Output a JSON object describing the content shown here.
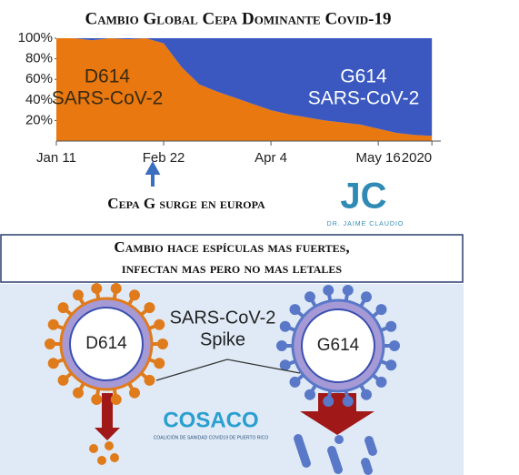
{
  "chart_data": {
    "type": "stacked-area",
    "title": "Cambio Global Cepa Dominante Covid-19",
    "categories": [
      "Jan 11",
      null,
      null,
      null,
      null,
      null,
      "Feb 22",
      null,
      null,
      null,
      null,
      null,
      "Apr 4",
      null,
      null,
      null,
      null,
      null,
      "May 16",
      null,
      null,
      "2020"
    ],
    "series": [
      {
        "color": "#e8780f",
        "values": [
          100,
          100,
          98,
          100,
          99,
          100,
          95,
          72,
          55,
          48,
          42,
          36,
          30,
          26,
          23,
          20,
          18,
          16,
          12,
          8,
          6,
          5
        ]
      },
      {
        "color": "#3a58c0",
        "values": [
          0,
          0,
          2,
          0,
          1,
          0,
          5,
          28,
          45,
          52,
          58,
          64,
          70,
          74,
          77,
          80,
          82,
          84,
          88,
          92,
          94,
          95
        ]
      }
    ],
    "ylim": [
      0,
      100
    ],
    "yticks": [
      {
        "value": 20,
        "label": "20%"
      },
      {
        "value": 40,
        "label": "40%"
      },
      {
        "value": 60,
        "label": "60%"
      },
      {
        "value": 80,
        "label": "80%"
      },
      {
        "value": 100,
        "label": "100%"
      }
    ],
    "annotations": [
      [
        "D614",
        "SARS-CoV-2"
      ],
      [
        "G614",
        "SARS-CoV-2"
      ]
    ],
    "arrow_note": "Cepa G surge en europa",
    "logo_initials": "JC",
    "logo_name": "DR. JAIME CLAUDIO",
    "banner": [
      "Cambio hace espículas mas fuertes,",
      "infectan mas pero no mas letales"
    ],
    "spike_label": [
      "SARS-CoV-2",
      "Spike"
    ],
    "virus_labels": [
      "D614",
      "G614"
    ],
    "coalition": "COSACO",
    "coalition_full": "COALICIÓN DE SANIDAD COVID19 DE PUERTO RICO"
  }
}
